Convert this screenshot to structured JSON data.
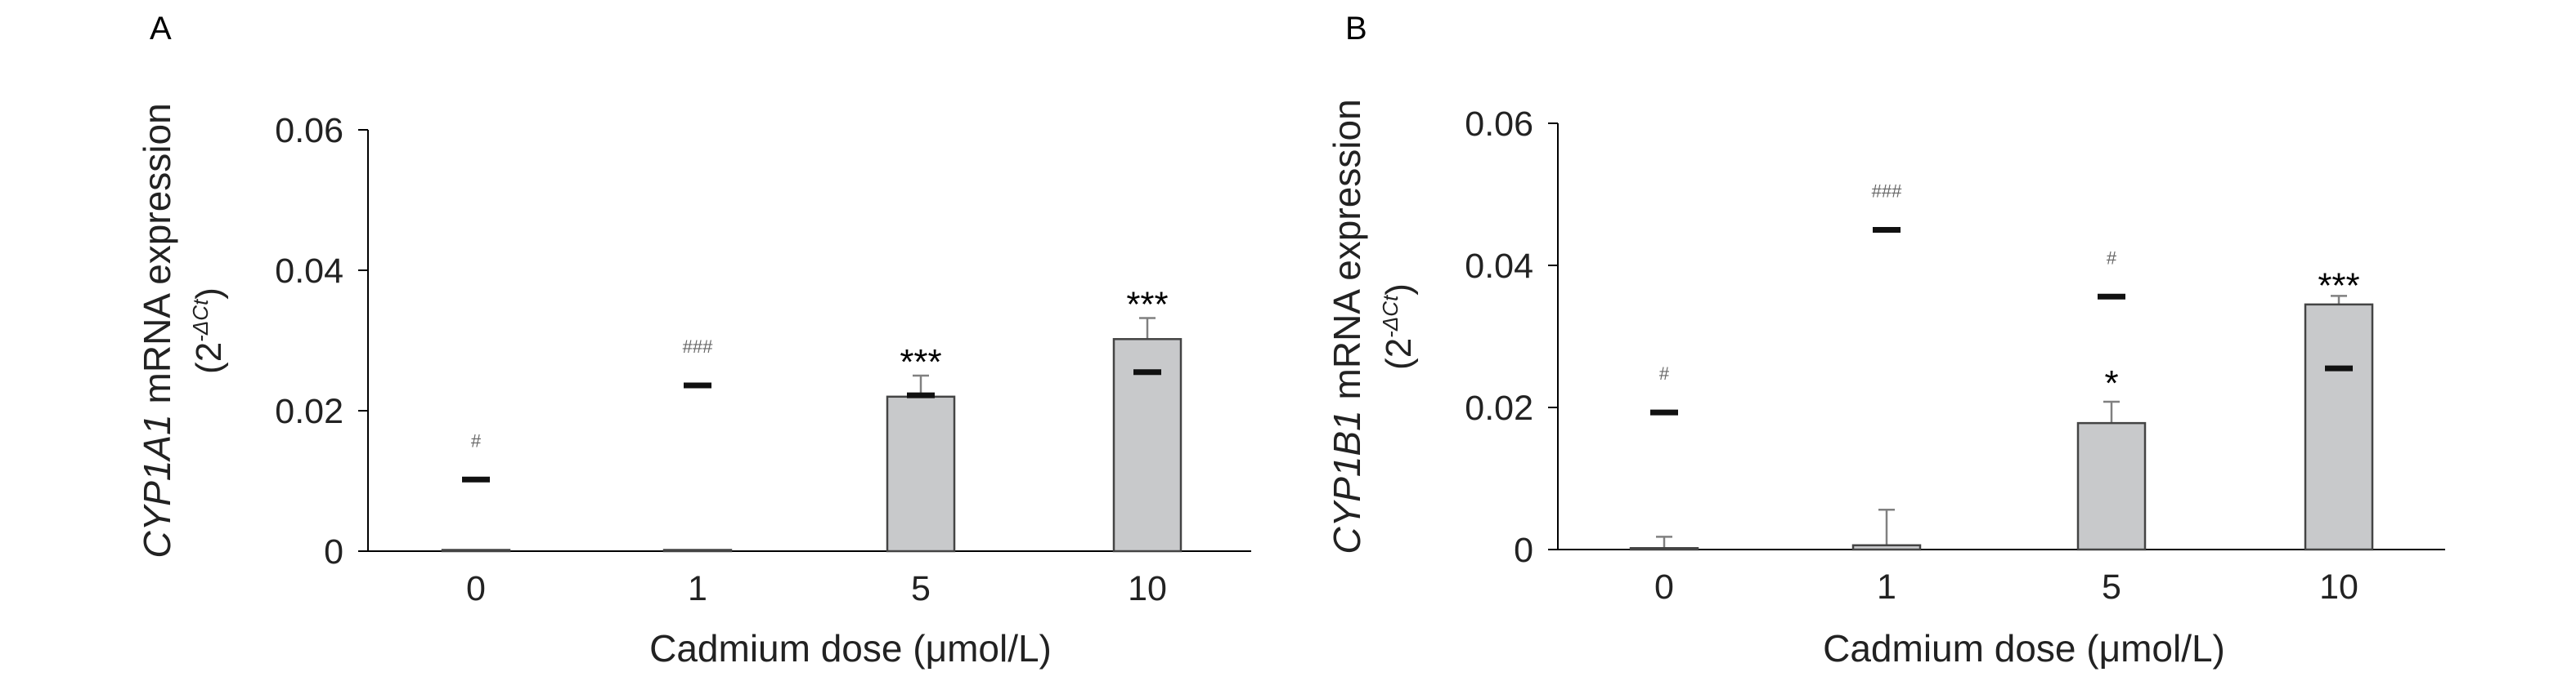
{
  "chart_data": [
    {
      "type": "bar",
      "panel_label": "A",
      "categories": [
        "0",
        "1",
        "5",
        "10"
      ],
      "ylabel_gene": "CYP1A1",
      "ylabel_rest": " mRNA expression",
      "ylabel_unit_base": "(2",
      "ylabel_unit_sup": "-ΔCt",
      "ylabel_unit_close": ")",
      "xlabel": "Cadmium dose (μmol/L)",
      "ylim": [
        0,
        0.06
      ],
      "yticks": [
        "0",
        "0.02",
        "0.04",
        "0.06"
      ],
      "series": [
        {
          "values": [
            0.0001,
            0.0001,
            0.022,
            0.0302
          ],
          "error": [
            0,
            0,
            0.003,
            0.003
          ]
        },
        {
          "values": [
            0.0102,
            0.0236,
            0.0222,
            0.0255
          ]
        }
      ],
      "annotations": [
        "#",
        "###",
        "***",
        "***"
      ]
    },
    {
      "type": "bar",
      "panel_label": "B",
      "categories": [
        "0",
        "1",
        "5",
        "10"
      ],
      "ylabel_gene": "CYP1B1",
      "ylabel_rest": " mRNA expression",
      "ylabel_unit_base": "(2",
      "ylabel_unit_sup": "-ΔCt",
      "ylabel_unit_close": ")",
      "xlabel": "Cadmium dose (μmol/L)",
      "ylim": [
        0,
        0.06
      ],
      "yticks": [
        "0",
        "0.02",
        "0.04",
        "0.06"
      ],
      "series": [
        {
          "values": [
            0.0002,
            0.0006,
            0.0178,
            0.0345
          ],
          "error": [
            0.0016,
            0.005,
            0.003,
            0.0012
          ]
        },
        {
          "values": [
            0.0193,
            0.045,
            0.0356,
            0.0255
          ]
        }
      ],
      "annotations_upper": [
        "#",
        "###",
        "#",
        "***"
      ],
      "annotations_lower": [
        "",
        "",
        "*",
        ""
      ]
    }
  ],
  "colors": {
    "bar_fill": "#c8c9cb",
    "bar_stroke": "#444444",
    "error": "#808080",
    "marker": "#111111",
    "axis": "#000000"
  }
}
